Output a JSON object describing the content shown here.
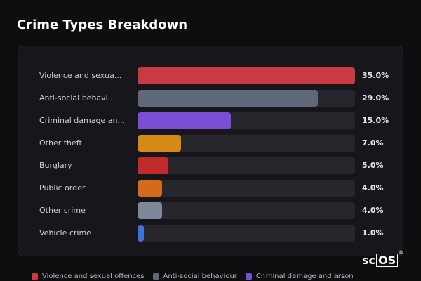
{
  "title": "Crime Types Breakdown",
  "colors": {
    "background": "#0e0e11",
    "panel": "#17171b",
    "track": "#26262c"
  },
  "chart_data": {
    "type": "bar",
    "orientation": "horizontal",
    "categories": [
      "Violence and sexua...",
      "Anti-social behavi...",
      "Criminal damage an...",
      "Other theft",
      "Burglary",
      "Public order",
      "Other crime",
      "Vehicle crime"
    ],
    "values": [
      35.0,
      29.0,
      15.0,
      7.0,
      5.0,
      4.0,
      4.0,
      1.0
    ],
    "value_labels": [
      "35.0%",
      "29.0%",
      "15.0%",
      "7.0%",
      "5.0%",
      "4.0%",
      "4.0%",
      "1.0%"
    ],
    "colors": [
      "#c93b40",
      "#5f6878",
      "#7a4fd6",
      "#d48a14",
      "#c02a2a",
      "#d46a1c",
      "#7f8898",
      "#3b74d6"
    ],
    "xlim": [
      0,
      35
    ],
    "grid": false,
    "legend": [
      {
        "label": "Violence and sexual offences",
        "color": "#c93b40"
      },
      {
        "label": "Anti-social behaviour",
        "color": "#5f6878"
      },
      {
        "label": "Criminal damage and arson",
        "color": "#7a4fd6"
      }
    ],
    "legend_position": "bottom"
  },
  "brand": {
    "text_pre": "sc",
    "text_box": "OS",
    "mark": "®"
  }
}
